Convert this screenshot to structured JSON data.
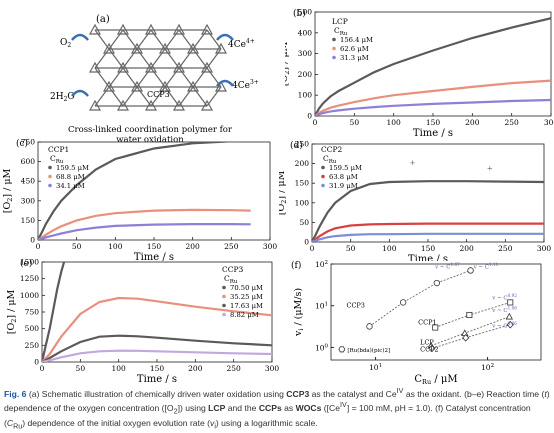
{
  "panel_a": {
    "label": "(a)",
    "left_labels": [
      "O",
      "2H",
      "O"
    ],
    "left_subs": [
      "2",
      "2",
      ""
    ],
    "right_labels": [
      "4Ce",
      "4Ce"
    ],
    "right_sups": [
      "4+",
      "3+"
    ],
    "center_label": "CCP3",
    "caption_line1": "Cross-linked coordination polymer for",
    "caption_line2": "water oxidation"
  },
  "chart_data": [
    {
      "panel": "(b)",
      "type": "line",
      "legend_title": "LCP",
      "legend_header": "C",
      "legend_header_sub": "Ru",
      "xlabel": "Time / s",
      "ylabel": "[O2] / μM",
      "xlim": [
        0,
        300
      ],
      "ylim": [
        0,
        500
      ],
      "xticks": [
        0,
        50,
        100,
        150,
        200,
        250,
        300
      ],
      "yticks": [
        0,
        100,
        200,
        300,
        400,
        500
      ],
      "series": [
        {
          "name": "156.4 μM",
          "color": "#5a5a5a",
          "x": [
            0,
            5,
            10,
            20,
            30,
            50,
            75,
            100,
            150,
            200,
            250,
            300
          ],
          "y": [
            0,
            35,
            60,
            95,
            120,
            160,
            210,
            250,
            315,
            375,
            425,
            470
          ]
        },
        {
          "name": "62.6 μM",
          "color": "#e8907c",
          "x": [
            0,
            5,
            10,
            20,
            30,
            50,
            75,
            100,
            150,
            200,
            250,
            300
          ],
          "y": [
            0,
            15,
            25,
            40,
            50,
            67,
            85,
            100,
            120,
            140,
            158,
            170
          ]
        },
        {
          "name": "31.3 μM",
          "color": "#8f7fd6",
          "x": [
            0,
            5,
            10,
            20,
            30,
            50,
            75,
            100,
            150,
            200,
            250,
            300
          ],
          "y": [
            0,
            8,
            14,
            22,
            27,
            35,
            43,
            49,
            58,
            65,
            72,
            77
          ]
        }
      ]
    },
    {
      "panel": "(c)",
      "type": "line",
      "legend_title": "CCP1",
      "legend_header": "C",
      "legend_header_sub": "Ru",
      "xlabel": "Time / s",
      "ylabel": "[O2] / μM",
      "xlim": [
        0,
        300
      ],
      "ylim": [
        0,
        750
      ],
      "xticks": [
        0,
        50,
        100,
        150,
        200,
        250,
        300
      ],
      "yticks": [
        0,
        150,
        300,
        450,
        600,
        750
      ],
      "series": [
        {
          "name": "159.5 μM",
          "color": "#5a5a5a",
          "x": [
            0,
            5,
            10,
            20,
            30,
            50,
            75,
            100,
            150,
            200,
            250,
            275
          ],
          "y": [
            0,
            60,
            120,
            220,
            300,
            420,
            540,
            620,
            700,
            740,
            755,
            760
          ]
        },
        {
          "name": "68.8 μM",
          "color": "#e8907c",
          "x": [
            0,
            5,
            10,
            20,
            30,
            50,
            75,
            100,
            150,
            200,
            250,
            275
          ],
          "y": [
            0,
            20,
            40,
            75,
            105,
            150,
            185,
            205,
            225,
            230,
            228,
            225
          ]
        },
        {
          "name": "34.1 μM",
          "color": "#8f7fd6",
          "x": [
            0,
            5,
            10,
            20,
            30,
            50,
            75,
            100,
            150,
            200,
            250,
            275
          ],
          "y": [
            0,
            10,
            20,
            35,
            50,
            75,
            95,
            108,
            118,
            122,
            122,
            120
          ]
        }
      ]
    },
    {
      "panel": "(d)",
      "type": "line",
      "legend_title": "CCP2",
      "legend_header": "C",
      "legend_header_sub": "Ru",
      "xlabel": "Time / s",
      "ylabel": "[O2] / μM",
      "xlim": [
        0,
        300
      ],
      "ylim": [
        0,
        250
      ],
      "xticks": [
        0,
        50,
        100,
        150,
        200,
        250,
        300
      ],
      "yticks": [
        0,
        50,
        100,
        150,
        200,
        250
      ],
      "series": [
        {
          "name": "159.5 μM",
          "color": "#5a5a5a",
          "x": [
            0,
            5,
            10,
            20,
            30,
            50,
            75,
            100,
            150,
            200,
            250,
            300
          ],
          "y": [
            0,
            20,
            40,
            75,
            100,
            130,
            148,
            153,
            155,
            155,
            154,
            153
          ]
        },
        {
          "name": "63.8 μM",
          "color": "#d94040",
          "x": [
            0,
            5,
            10,
            20,
            30,
            50,
            75,
            100,
            150,
            200,
            250,
            300
          ],
          "y": [
            0,
            8,
            15,
            27,
            35,
            42,
            45,
            46,
            47,
            47,
            47,
            47
          ]
        },
        {
          "name": "31.9 μM",
          "color": "#7b8fd6",
          "x": [
            0,
            5,
            10,
            20,
            30,
            50,
            75,
            100,
            150,
            200,
            250,
            300
          ],
          "y": [
            0,
            4,
            7,
            12,
            15,
            18,
            20,
            20,
            21,
            21,
            21,
            21
          ]
        }
      ]
    },
    {
      "panel": "(e)",
      "type": "line",
      "legend_title": "CCP3",
      "legend_header": "C",
      "legend_header_sub": "Ru",
      "xlabel": "Time / s",
      "ylabel": "[O2] / μM",
      "xlim": [
        0,
        300
      ],
      "ylim": [
        0,
        1500
      ],
      "xticks": [
        0,
        50,
        100,
        150,
        200,
        250,
        300
      ],
      "yticks": [
        0,
        250,
        500,
        750,
        1000,
        1250,
        1500
      ],
      "series": [
        {
          "name": "70.50 μM",
          "color": "#5a5a5a",
          "x": [
            0,
            5,
            10,
            15,
            20,
            25,
            30
          ],
          "y": [
            0,
            250,
            500,
            800,
            1100,
            1350,
            1550
          ]
        },
        {
          "name": "35.25 μM",
          "color": "#e8907c",
          "x": [
            0,
            10,
            25,
            50,
            75,
            100,
            125,
            150,
            200,
            250,
            300
          ],
          "y": [
            0,
            120,
            380,
            720,
            900,
            960,
            950,
            910,
            830,
            760,
            700
          ]
        },
        {
          "name": "17.63 μM",
          "color": "#5a5a5a",
          "x": [
            0,
            10,
            25,
            50,
            75,
            100,
            125,
            150,
            200,
            250,
            300
          ],
          "y": [
            0,
            60,
            160,
            300,
            380,
            395,
            385,
            365,
            320,
            280,
            250
          ]
        },
        {
          "name": "8.82 μM",
          "color": "#c2a8e0",
          "x": [
            0,
            10,
            25,
            50,
            75,
            100,
            125,
            150,
            200,
            250,
            300
          ],
          "y": [
            0,
            25,
            70,
            130,
            160,
            170,
            168,
            160,
            145,
            130,
            120
          ]
        }
      ]
    },
    {
      "panel": "(f)",
      "type": "scatter",
      "xlabel": "C_Ru / μM",
      "ylabel": "v_i / (μM/s)",
      "xscale": "log",
      "yscale": "log",
      "xlim": [
        4,
        300
      ],
      "ylim": [
        0.5,
        100
      ],
      "xtick_labels": [
        "10",
        "10"
      ],
      "xtick_sups": [
        "1",
        "2"
      ],
      "ytick_labels": [
        "10",
        "10",
        "10"
      ],
      "ytick_sups": [
        "0",
        "1",
        "2"
      ],
      "series": [
        {
          "name": "CCP3",
          "marker": "circle",
          "x": [
            8.82,
            17.63,
            35.25,
            70.5
          ],
          "y": [
            3.2,
            12,
            35,
            70
          ]
        },
        {
          "name": "CCP1",
          "marker": "square",
          "x": [
            34.1,
            68.8,
            159.5
          ],
          "y": [
            3.0,
            6.0,
            12
          ]
        },
        {
          "name": "LCP",
          "marker": "triangle",
          "x": [
            31.3,
            62.6,
            156.4
          ],
          "y": [
            1.1,
            2.2,
            5.5
          ]
        },
        {
          "name": "CCP2",
          "marker": "diamond",
          "x": [
            31.9,
            63.8,
            159.5
          ],
          "y": [
            0.95,
            1.7,
            3.5
          ]
        },
        {
          "name": "[Ru(bda)(pic)2]",
          "marker": "hexagon",
          "x": [
            5
          ],
          "y": [
            0.9
          ]
        }
      ],
      "annotations": [
        {
          "text": "v ~ C",
          "sup": "1.87"
        },
        {
          "text": "v ~ C",
          "sup": "1.11"
        },
        {
          "text": "v ~ C",
          "sup": "0.92"
        },
        {
          "text": "v ~ C",
          "sup": "1.06"
        },
        {
          "text": "v ~ C",
          "sup": "0.86"
        }
      ],
      "point_labels": [
        "CCP3",
        "CCP1",
        "LCP",
        "CCP2",
        "[Ru(bda)(pic)2]"
      ]
    }
  ],
  "caption": {
    "fig_label": "Fig. 6",
    "text_1": "(a) Schematic illustration of chemically driven water oxidation using",
    "ccp3": "CCP3",
    "text_2": "as the catalyst and Ce",
    "ce_sup": "IV",
    "text_3": "as the oxidant. (b–e) Reaction time (",
    "t_var": "t",
    "text_4": ") dependence of the oxygen concentration ([O",
    "o2_sub": "2",
    "text_5": "]) using",
    "lcp": "LCP",
    "text_6": "and the",
    "ccps": "CCPs",
    "text_7": "as",
    "wocs": "WOCs",
    "text_8": "([Ce",
    "ce_sup2": "IV",
    "text_9": "] = 100 mM, pH = 1.0). (f) Catalyst concentration (",
    "c_var": "C",
    "c_sub": "Ru",
    "text_10": ") dependence of the initial oxygen evolution rate (",
    "v_var": "v",
    "v_sub": "i",
    "text_11": ") using a logarithmic scale."
  }
}
